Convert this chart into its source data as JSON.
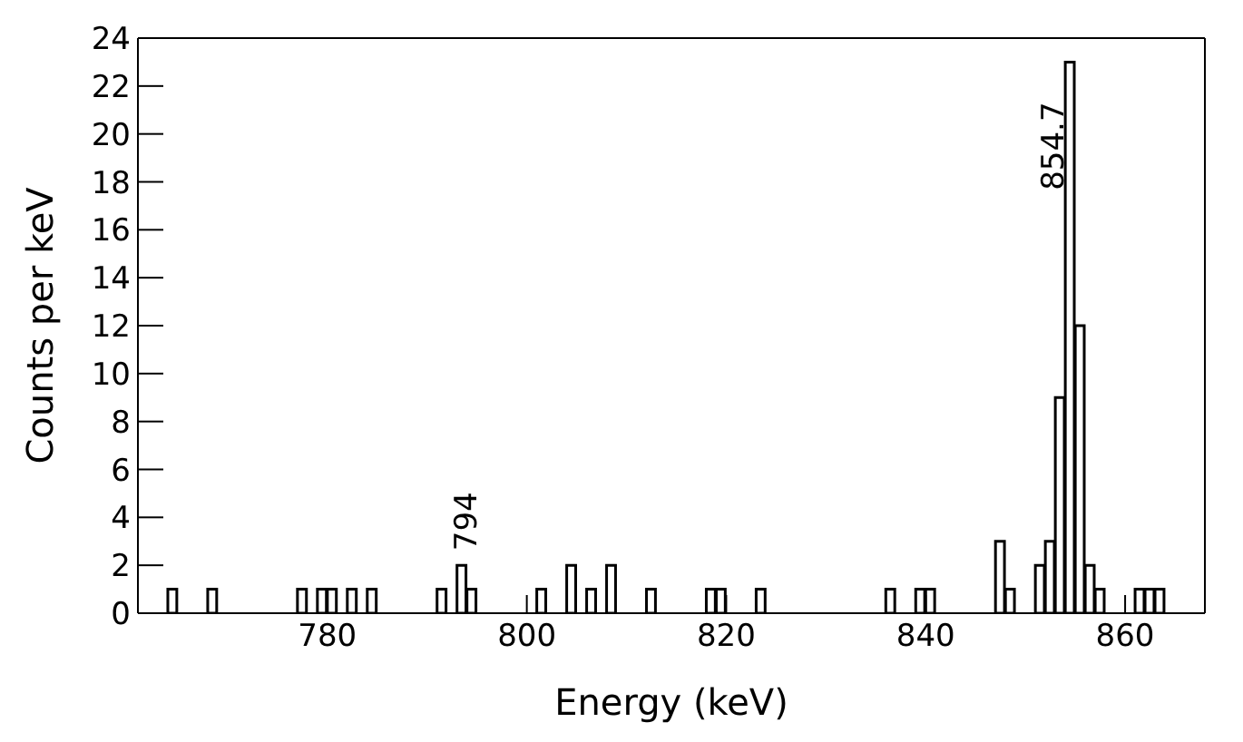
{
  "chart_data": {
    "type": "histogram",
    "xlabel": "Energy (keV)",
    "ylabel": "Counts per keV",
    "bins": [
      761,
      762,
      763,
      764,
      765,
      766,
      767,
      768,
      769,
      770,
      771,
      772,
      773,
      774,
      775,
      776,
      777,
      778,
      779,
      780,
      781,
      782,
      783,
      784,
      785,
      786,
      787,
      788,
      789,
      790,
      791,
      792,
      793,
      794,
      795,
      796,
      797,
      798,
      799,
      800,
      801,
      802,
      803,
      804,
      805,
      806,
      807,
      808,
      809,
      810,
      811,
      812,
      813,
      814,
      815,
      816,
      817,
      818,
      819,
      820,
      821,
      822,
      823,
      824,
      825,
      826,
      827,
      828,
      829,
      830,
      831,
      832,
      833,
      834,
      835,
      836,
      837,
      838,
      839,
      840,
      841,
      842,
      843,
      844,
      845,
      846,
      847,
      848,
      849,
      850,
      851,
      852,
      853,
      854,
      855,
      856,
      857,
      858,
      859,
      860,
      861,
      862,
      863,
      864,
      865,
      866,
      867,
      868
    ],
    "values": [
      0,
      0,
      0,
      1,
      0,
      0,
      0,
      1,
      0,
      0,
      0,
      0,
      0,
      0,
      0,
      0,
      1,
      0,
      1,
      1,
      0,
      1,
      0,
      1,
      0,
      0,
      0,
      0,
      0,
      0,
      1,
      0,
      2,
      1,
      0,
      0,
      0,
      0,
      0,
      0,
      1,
      0,
      0,
      2,
      0,
      1,
      0,
      2,
      0,
      0,
      0,
      1,
      0,
      0,
      0,
      0,
      0,
      1,
      1,
      0,
      0,
      0,
      1,
      0,
      0,
      0,
      0,
      0,
      0,
      0,
      0,
      0,
      0,
      0,
      0,
      1,
      0,
      0,
      1,
      1,
      0,
      0,
      0,
      0,
      0,
      0,
      3,
      1,
      0,
      0,
      2,
      3,
      9,
      23,
      12,
      2,
      1,
      0,
      0,
      0,
      1,
      1,
      1,
      0,
      0,
      0,
      0
    ],
    "color": "#000000",
    "xlim": [
      761,
      868
    ],
    "xticks": [
      780,
      800,
      820,
      840,
      860
    ],
    "ylim": [
      0,
      24
    ],
    "yticks": [
      0,
      2,
      4,
      6,
      8,
      10,
      12,
      14,
      16,
      18,
      20,
      22,
      24
    ],
    "annotations": [
      {
        "text": "794",
        "x": 794,
        "y": 2
      },
      {
        "text": "854.7",
        "x": 854.7,
        "y": 23
      }
    ]
  }
}
